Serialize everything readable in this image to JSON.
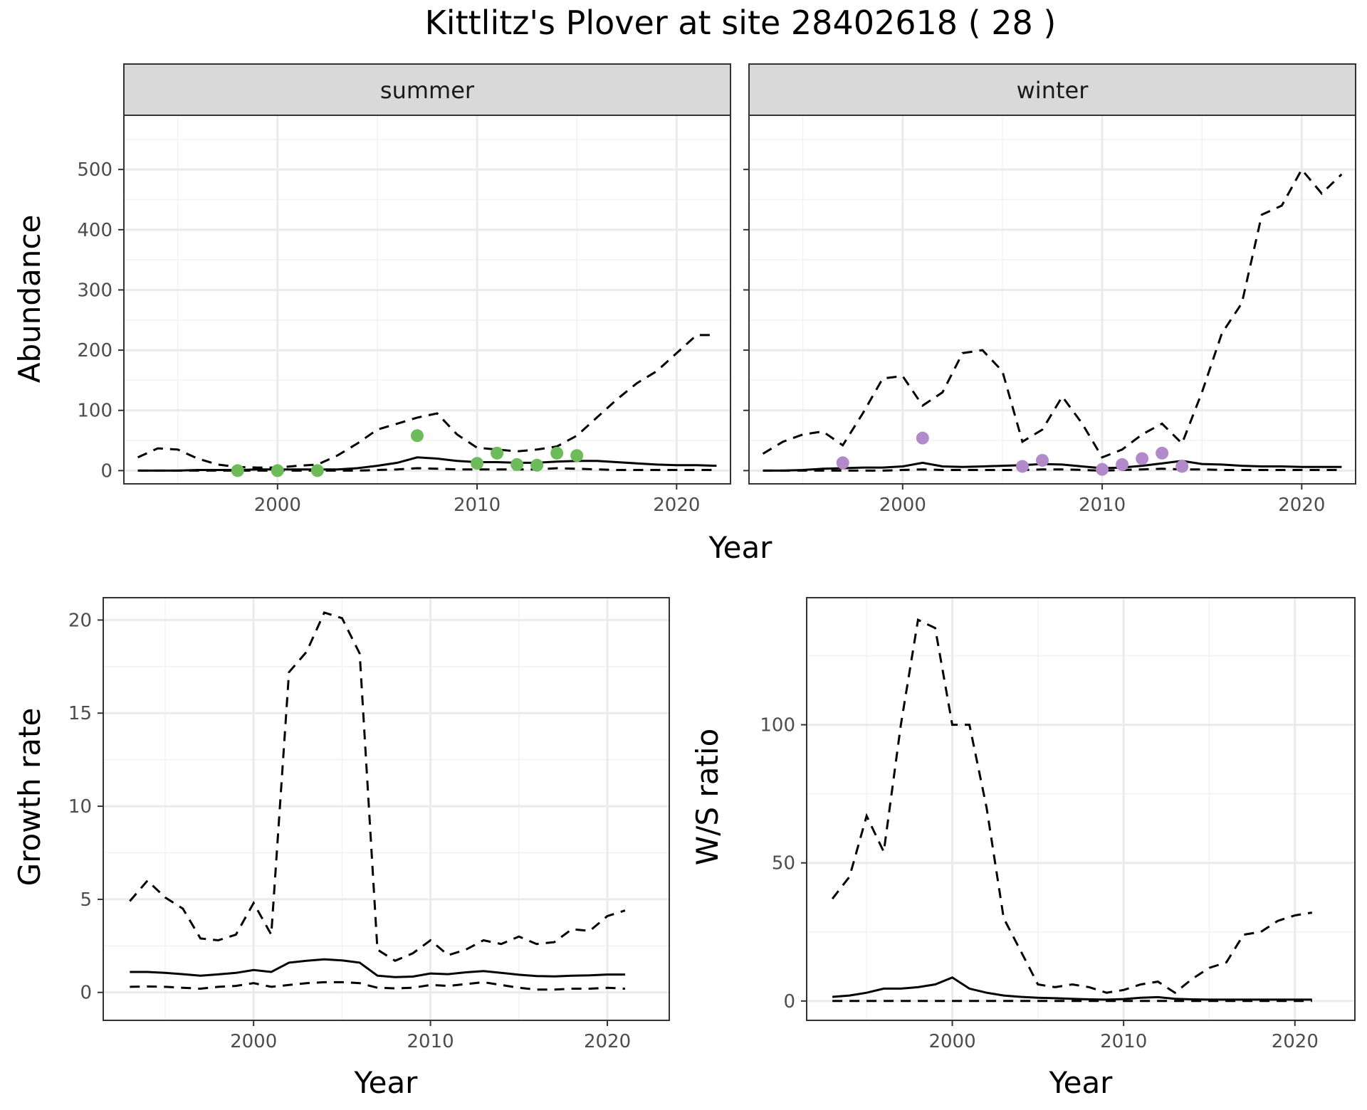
{
  "title": "Kittlitz's Plover at site 28402618 ( 28 )",
  "colors": {
    "summer": "#6dbb5a",
    "winter": "#b38ac9",
    "line": "#000000",
    "grid": "#ebebeb",
    "strip": "#d9d9d9"
  },
  "chart_data": [
    {
      "id": "abundance",
      "type": "line",
      "ylabel": "Abundance",
      "xlabel": "Year",
      "facets": [
        "summer",
        "winter"
      ],
      "xlim": [
        1992.3,
        2022.7
      ],
      "ylim": [
        -22,
        590
      ],
      "xticks": [
        2000,
        2010,
        2020
      ],
      "yticks": [
        0,
        100,
        200,
        300,
        400,
        500
      ],
      "panels": [
        {
          "facet": "summer",
          "point_color": "#6dbb5a",
          "estimate": {
            "x": [
              1993,
              1994,
              1995,
              1996,
              1997,
              1998,
              1999,
              2000,
              2001,
              2002,
              2003,
              2004,
              2005,
              2006,
              2007,
              2008,
              2009,
              2010,
              2011,
              2012,
              2013,
              2014,
              2015,
              2016,
              2017,
              2018,
              2019,
              2020,
              2021,
              2022
            ],
            "y": [
              0,
              0,
              0,
              1,
              1,
              1,
              2,
              2,
              2,
              2,
              2,
              4,
              8,
              13,
              22,
              20,
              16,
              14,
              14,
              13,
              13,
              15,
              16,
              16,
              14,
              12,
              10,
              9,
              9,
              8
            ]
          },
          "upper": {
            "x": [
              1993,
              1994,
              1995,
              1996,
              1997,
              1998,
              1999,
              2000,
              2001,
              2002,
              2003,
              2004,
              2005,
              2006,
              2007,
              2008,
              2009,
              2010,
              2011,
              2012,
              2013,
              2014,
              2015,
              2016,
              2017,
              2018,
              2019,
              2020,
              2021,
              2022
            ],
            "y": [
              22,
              37,
              35,
              20,
              10,
              6,
              5,
              5,
              8,
              10,
              25,
              45,
              68,
              78,
              88,
              95,
              60,
              38,
              35,
              32,
              35,
              40,
              58,
              88,
              118,
              145,
              165,
              195,
              225,
              225
            ]
          },
          "lower": {
            "x": [
              1993,
              1994,
              1995,
              1996,
              1997,
              1998,
              1999,
              2000,
              2001,
              2002,
              2003,
              2004,
              2005,
              2006,
              2007,
              2008,
              2009,
              2010,
              2011,
              2012,
              2013,
              2014,
              2015,
              2016,
              2017,
              2018,
              2019,
              2020,
              2021,
              2022
            ],
            "y": [
              0,
              0,
              0,
              0,
              0,
              0,
              0,
              0,
              0,
              0,
              0,
              0,
              1,
              2,
              4,
              3,
              2,
              2,
              2,
              2,
              2,
              4,
              3,
              2,
              1,
              1,
              1,
              1,
              1,
              1
            ]
          },
          "observed": {
            "x": [
              1998,
              2000,
              2002,
              2007,
              2010,
              2011,
              2012,
              2013,
              2014,
              2015
            ],
            "y": [
              0,
              0,
              0,
              58,
              12,
              29,
              10,
              9,
              29,
              25
            ]
          }
        },
        {
          "facet": "winter",
          "point_color": "#b38ac9",
          "estimate": {
            "x": [
              1993,
              1994,
              1995,
              1996,
              1997,
              1998,
              1999,
              2000,
              2001,
              2002,
              2003,
              2004,
              2005,
              2006,
              2007,
              2008,
              2009,
              2010,
              2011,
              2012,
              2013,
              2014,
              2015,
              2016,
              2017,
              2018,
              2019,
              2020,
              2021,
              2022
            ],
            "y": [
              0,
              0,
              1,
              3,
              4,
              5,
              5,
              7,
              13,
              7,
              6,
              7,
              8,
              9,
              11,
              10,
              7,
              4,
              5,
              8,
              12,
              16,
              11,
              10,
              8,
              7,
              7,
              6,
              6,
              6
            ]
          },
          "upper": {
            "x": [
              1993,
              1994,
              1995,
              1996,
              1997,
              1998,
              1999,
              2000,
              2001,
              2002,
              2003,
              2004,
              2005,
              2006,
              2007,
              2008,
              2009,
              2010,
              2011,
              2012,
              2013,
              2014,
              2015,
              2016,
              2017,
              2018,
              2019,
              2020,
              2021,
              2022
            ],
            "y": [
              28,
              48,
              60,
              65,
              42,
              95,
              153,
              157,
              108,
              130,
              195,
              200,
              165,
              48,
              68,
              123,
              78,
              22,
              35,
              60,
              78,
              45,
              130,
              228,
              278,
              425,
              440,
              500,
              460,
              492
            ]
          },
          "lower": {
            "x": [
              1993,
              1994,
              1995,
              1996,
              1997,
              1998,
              1999,
              2000,
              2001,
              2002,
              2003,
              2004,
              2005,
              2006,
              2007,
              2008,
              2009,
              2010,
              2011,
              2012,
              2013,
              2014,
              2015,
              2016,
              2017,
              2018,
              2019,
              2020,
              2021,
              2022
            ],
            "y": [
              0,
              0,
              0,
              0,
              0,
              0,
              0,
              1,
              2,
              1,
              1,
              1,
              1,
              1,
              2,
              2,
              1,
              0,
              1,
              2,
              3,
              2,
              2,
              1,
              1,
              1,
              1,
              1,
              1,
              1
            ]
          },
          "observed": {
            "x": [
              1997,
              2001,
              2006,
              2007,
              2010,
              2011,
              2012,
              2013,
              2014
            ],
            "y": [
              13,
              54,
              7,
              17,
              2,
              10,
              20,
              29,
              7
            ]
          }
        }
      ]
    },
    {
      "id": "growth",
      "type": "line",
      "ylabel": "Growth rate",
      "xlabel": "Year",
      "xlim": [
        1991.5,
        2023.5
      ],
      "ylim": [
        -1.5,
        21.2
      ],
      "xticks": [
        2000,
        2010,
        2020
      ],
      "yticks": [
        0,
        5,
        10,
        15,
        20
      ],
      "estimate": {
        "x": [
          1993,
          1994,
          1995,
          1996,
          1997,
          1998,
          1999,
          2000,
          2001,
          2002,
          2003,
          2004,
          2005,
          2006,
          2007,
          2008,
          2009,
          2010,
          2011,
          2012,
          2013,
          2014,
          2015,
          2016,
          2017,
          2018,
          2019,
          2020,
          2021
        ],
        "y": [
          1.1,
          1.1,
          1.05,
          0.98,
          0.9,
          0.97,
          1.05,
          1.2,
          1.1,
          1.6,
          1.7,
          1.78,
          1.72,
          1.6,
          0.9,
          0.82,
          0.85,
          1.02,
          0.98,
          1.08,
          1.15,
          1.05,
          0.95,
          0.88,
          0.86,
          0.9,
          0.92,
          0.96,
          0.96
        ]
      },
      "upper": {
        "x": [
          1993,
          1994,
          1995,
          1996,
          1997,
          1998,
          1999,
          2000,
          2001,
          2002,
          2003,
          2004,
          2005,
          2006,
          2007,
          2008,
          2009,
          2010,
          2011,
          2012,
          2013,
          2014,
          2015,
          2016,
          2017,
          2018,
          2019,
          2020,
          2021
        ],
        "y": [
          4.9,
          6.0,
          5.1,
          4.5,
          2.9,
          2.8,
          3.1,
          4.8,
          3.1,
          17.2,
          18.3,
          20.4,
          20.1,
          18.2,
          2.3,
          1.7,
          2.1,
          2.8,
          2.0,
          2.3,
          2.8,
          2.6,
          3.0,
          2.6,
          2.7,
          3.4,
          3.3,
          4.1,
          4.4
        ]
      },
      "lower": {
        "x": [
          1993,
          1994,
          1995,
          1996,
          1997,
          1998,
          1999,
          2000,
          2001,
          2002,
          2003,
          2004,
          2005,
          2006,
          2007,
          2008,
          2009,
          2010,
          2011,
          2012,
          2013,
          2014,
          2015,
          2016,
          2017,
          2018,
          2019,
          2020,
          2021
        ],
        "y": [
          0.3,
          0.32,
          0.3,
          0.25,
          0.2,
          0.3,
          0.35,
          0.5,
          0.3,
          0.4,
          0.5,
          0.55,
          0.55,
          0.5,
          0.25,
          0.22,
          0.25,
          0.4,
          0.35,
          0.45,
          0.55,
          0.4,
          0.25,
          0.15,
          0.15,
          0.2,
          0.2,
          0.25,
          0.2
        ]
      }
    },
    {
      "id": "ratio",
      "type": "line",
      "ylabel": "W/S ratio",
      "xlabel": "Year",
      "xlim": [
        1991.5,
        2023.5
      ],
      "ylim": [
        -7,
        146
      ],
      "xticks": [
        2000,
        2010,
        2020
      ],
      "yticks": [
        0,
        50,
        100
      ],
      "estimate": {
        "x": [
          1993,
          1994,
          1995,
          1996,
          1997,
          1998,
          1999,
          2000,
          2001,
          2002,
          2003,
          2004,
          2005,
          2006,
          2007,
          2008,
          2009,
          2010,
          2011,
          2012,
          2013,
          2014,
          2015,
          2016,
          2017,
          2018,
          2019,
          2020,
          2021
        ],
        "y": [
          1.5,
          2,
          3,
          4.5,
          4.5,
          5,
          6,
          8.5,
          4.5,
          3,
          2,
          1.5,
          1.2,
          1,
          0.8,
          0.6,
          0.5,
          0.7,
          1.2,
          1.4,
          0.8,
          0.6,
          0.5,
          0.5,
          0.5,
          0.5,
          0.5,
          0.5,
          0.5
        ]
      },
      "upper": {
        "x": [
          1993,
          1994,
          1995,
          1996,
          1997,
          1998,
          1999,
          2000,
          2001,
          2002,
          2003,
          2004,
          2005,
          2006,
          2007,
          2008,
          2009,
          2010,
          2011,
          2012,
          2013,
          2014,
          2015,
          2016,
          2017,
          2018,
          2019,
          2020,
          2021
        ],
        "y": [
          37,
          45,
          67,
          54,
          100,
          138,
          135,
          100,
          100,
          70,
          30,
          18,
          6,
          5,
          6,
          5,
          3,
          4,
          6,
          7,
          3,
          8,
          12,
          14,
          24,
          25,
          29,
          31,
          32
        ]
      },
      "lower": {
        "x": [
          1993,
          1994,
          1995,
          1996,
          1997,
          1998,
          1999,
          2000,
          2001,
          2002,
          2003,
          2004,
          2005,
          2006,
          2007,
          2008,
          2009,
          2010,
          2011,
          2012,
          2013,
          2014,
          2015,
          2016,
          2017,
          2018,
          2019,
          2020,
          2021
        ],
        "y": [
          0,
          0,
          0,
          0,
          0,
          0,
          0,
          0,
          0,
          0,
          0,
          0,
          0,
          0,
          0,
          0,
          0,
          0,
          0,
          0,
          0,
          0,
          0,
          0,
          0,
          0,
          0,
          0,
          0
        ]
      }
    }
  ]
}
